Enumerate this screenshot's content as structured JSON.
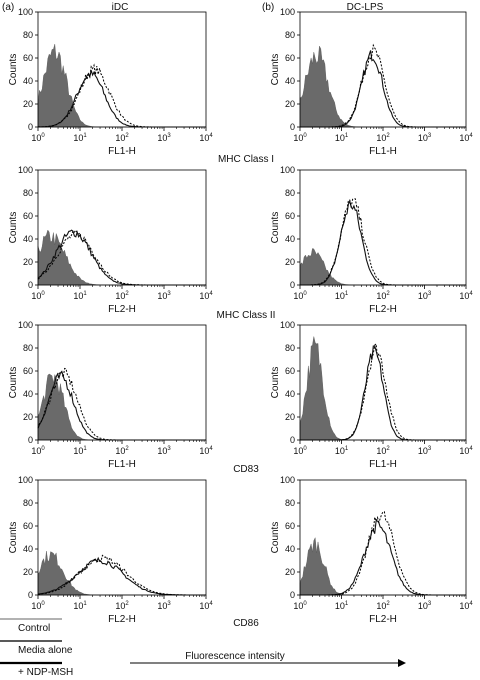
{
  "figure": {
    "panel_a_label": "(a)",
    "panel_b_label": "(b)",
    "column_a_title": "iDC",
    "column_b_title": "DC-LPS",
    "x_axis_caption": "Fluorescence intensity"
  },
  "legend": {
    "items": [
      {
        "label": "Control",
        "color": "#999999"
      },
      {
        "label": "Media alone",
        "color": "#222222"
      },
      {
        "label": "+ NDP-MSH",
        "color": "#000000"
      }
    ]
  },
  "rows": [
    {
      "marker": "MHC Class I"
    },
    {
      "marker": "MHC Class II"
    },
    {
      "marker": "CD83"
    },
    {
      "marker": "CD86"
    }
  ],
  "chart_data": [
    {
      "type": "area",
      "column": "iDC",
      "row": "MHC Class I",
      "xlabel": "FL1-H",
      "ylabel": "Counts",
      "xscale": "log",
      "xlim": [
        1,
        10000
      ],
      "ylim": [
        0,
        100
      ],
      "yticks": [
        "0",
        "20",
        "40",
        "60",
        "80",
        "100"
      ],
      "xticks": [
        "10^0",
        "10^1",
        "10^2",
        "10^3",
        "10^4"
      ],
      "control": {
        "peak_x": 2.5,
        "width_decades": 0.28,
        "peak_y": 65
      },
      "media": {
        "peak_x": 18,
        "width_decades": 0.33,
        "peak_y": 46
      },
      "ndp": {
        "peak_x": 22,
        "width_decades": 0.36,
        "peak_y": 50
      }
    },
    {
      "type": "area",
      "column": "DC-LPS",
      "row": "MHC Class I",
      "xlabel": "FL1-H",
      "ylabel": "Counts",
      "xscale": "log",
      "xlim": [
        1,
        10000
      ],
      "ylim": [
        0,
        100
      ],
      "yticks": [
        "0",
        "20",
        "40",
        "60",
        "80",
        "100"
      ],
      "xticks": [
        "10^0",
        "10^1",
        "10^2",
        "10^3",
        "10^4"
      ],
      "control": {
        "peak_x": 2.5,
        "width_decades": 0.28,
        "peak_y": 62
      },
      "media": {
        "peak_x": 55,
        "width_decades": 0.25,
        "peak_y": 63
      },
      "ndp": {
        "peak_x": 58,
        "width_decades": 0.27,
        "peak_y": 66
      }
    },
    {
      "type": "area",
      "column": "iDC",
      "row": "MHC Class II",
      "xlabel": "FL2-H",
      "ylabel": "Counts",
      "xscale": "log",
      "xlim": [
        1,
        10000
      ],
      "ylim": [
        0,
        100
      ],
      "yticks": [
        "0",
        "20",
        "40",
        "60",
        "80",
        "100"
      ],
      "xticks": [
        "10^0",
        "10^1",
        "10^2",
        "10^3",
        "10^4"
      ],
      "control": {
        "peak_x": 2.0,
        "width_decades": 0.35,
        "peak_y": 42
      },
      "media": {
        "peak_x": 7,
        "width_decades": 0.42,
        "peak_y": 46
      },
      "ndp": {
        "peak_x": 8,
        "width_decades": 0.44,
        "peak_y": 44
      }
    },
    {
      "type": "area",
      "column": "DC-LPS",
      "row": "MHC Class II",
      "xlabel": "FL2-H",
      "ylabel": "Counts",
      "xscale": "log",
      "xlim": [
        1,
        10000
      ],
      "ylim": [
        0,
        100
      ],
      "yticks": [
        "0",
        "20",
        "40",
        "60",
        "80",
        "100"
      ],
      "xticks": [
        "10^0",
        "10^1",
        "10^2",
        "10^3",
        "10^4"
      ],
      "control": {
        "peak_x": 2.0,
        "width_decades": 0.28,
        "peak_y": 28
      },
      "media": {
        "peak_x": 17,
        "width_decades": 0.25,
        "peak_y": 70
      },
      "ndp": {
        "peak_x": 18,
        "width_decades": 0.27,
        "peak_y": 73
      }
    },
    {
      "type": "area",
      "column": "iDC",
      "row": "CD83",
      "xlabel": "FL1-H",
      "ylabel": "Counts",
      "xscale": "log",
      "xlim": [
        1,
        10000
      ],
      "ylim": [
        0,
        100
      ],
      "yticks": [
        "0",
        "20",
        "40",
        "60",
        "80",
        "100"
      ],
      "xticks": [
        "10^0",
        "10^1",
        "10^2",
        "10^3",
        "10^4"
      ],
      "control": {
        "peak_x": 2.3,
        "width_decades": 0.25,
        "peak_y": 55
      },
      "media": {
        "peak_x": 3.5,
        "width_decades": 0.3,
        "peak_y": 55
      },
      "ndp": {
        "peak_x": 4,
        "width_decades": 0.33,
        "peak_y": 58
      }
    },
    {
      "type": "area",
      "column": "DC-LPS",
      "row": "CD83",
      "xlabel": "FL1-H",
      "ylabel": "Counts",
      "xscale": "log",
      "xlim": [
        1,
        10000
      ],
      "ylim": [
        0,
        100
      ],
      "yticks": [
        "0",
        "20",
        "40",
        "60",
        "80",
        "100"
      ],
      "xticks": [
        "10^0",
        "10^1",
        "10^2",
        "10^3",
        "10^4"
      ],
      "control": {
        "peak_x": 2.3,
        "width_decades": 0.2,
        "peak_y": 80
      },
      "media": {
        "peak_x": 62,
        "width_decades": 0.22,
        "peak_y": 76
      },
      "ndp": {
        "peak_x": 68,
        "width_decades": 0.24,
        "peak_y": 79
      }
    },
    {
      "type": "area",
      "column": "iDC",
      "row": "CD86",
      "xlabel": "FL2-H",
      "ylabel": "Counts",
      "xscale": "log",
      "xlim": [
        1,
        10000
      ],
      "ylim": [
        0,
        100
      ],
      "yticks": [
        "0",
        "20",
        "40",
        "60",
        "80",
        "100"
      ],
      "xticks": [
        "10^0",
        "10^1",
        "10^2",
        "10^3",
        "10^4"
      ],
      "control": {
        "peak_x": 2.0,
        "width_decades": 0.3,
        "peak_y": 35
      },
      "media": {
        "peak_x": 30,
        "width_decades": 0.55,
        "peak_y": 30
      },
      "ndp": {
        "peak_x": 35,
        "width_decades": 0.55,
        "peak_y": 32
      }
    },
    {
      "type": "area",
      "column": "DC-LPS",
      "row": "CD86",
      "xlabel": "FL2-H",
      "ylabel": "Counts",
      "xscale": "log",
      "xlim": [
        1,
        10000
      ],
      "ylim": [
        0,
        100
      ],
      "yticks": [
        "0",
        "20",
        "40",
        "60",
        "80",
        "100"
      ],
      "xticks": [
        "10^0",
        "10^1",
        "10^2",
        "10^3",
        "10^4"
      ],
      "control": {
        "peak_x": 2.3,
        "width_decades": 0.22,
        "peak_y": 45
      },
      "media": {
        "peak_x": 75,
        "width_decades": 0.32,
        "peak_y": 60
      },
      "ndp": {
        "peak_x": 90,
        "width_decades": 0.32,
        "peak_y": 70
      }
    }
  ]
}
